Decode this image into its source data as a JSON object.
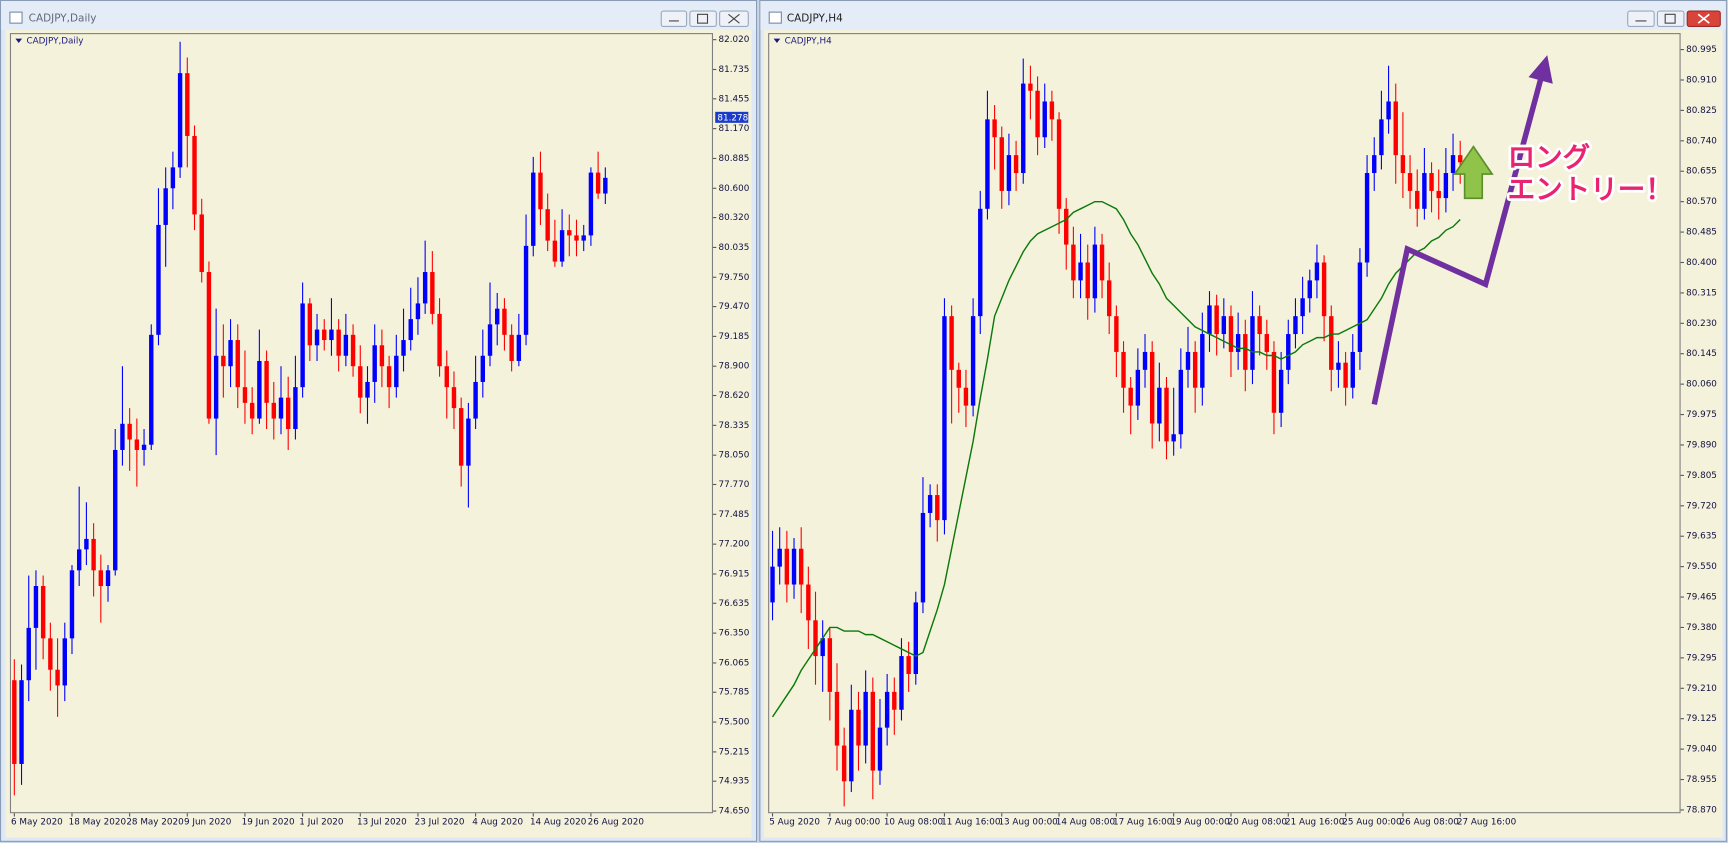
{
  "windows": [
    {
      "title": "CADJPY,Daily"
    },
    {
      "title": "CADJPY,H4"
    }
  ],
  "chart_data": [
    {
      "type": "candlestick",
      "title": "CADJPY,Daily",
      "categories": [
        "6 May 2020",
        null,
        null,
        null,
        null,
        null,
        null,
        null,
        "18 May 2020",
        null,
        null,
        null,
        null,
        null,
        null,
        null,
        "28 May 2020",
        null,
        null,
        null,
        null,
        null,
        null,
        null,
        "9 Jun 2020",
        null,
        null,
        null,
        null,
        null,
        null,
        null,
        "19 Jun 2020",
        null,
        null,
        null,
        null,
        null,
        null,
        null,
        "1 Jul 2020",
        null,
        null,
        null,
        null,
        null,
        null,
        null,
        "13 Jul 2020",
        null,
        null,
        null,
        null,
        null,
        null,
        null,
        "23 Jul 2020",
        null,
        null,
        null,
        null,
        null,
        null,
        null,
        "4 Aug 2020",
        null,
        null,
        null,
        null,
        null,
        null,
        null,
        "14 Aug 2020",
        null,
        null,
        null,
        null,
        null,
        null,
        null,
        "26 Aug 2020",
        null,
        null
      ],
      "open": [
        75.9,
        75.1,
        75.9,
        76.4,
        76.8,
        76.3,
        76.0,
        75.85,
        76.3,
        76.95,
        77.15,
        77.25,
        76.95,
        76.8,
        76.95,
        78.1,
        78.35,
        78.2,
        78.1,
        78.15,
        79.2,
        80.25,
        80.6,
        80.8,
        81.7,
        81.1,
        80.35,
        79.8,
        78.4,
        79.0,
        78.9,
        79.15,
        78.7,
        78.55,
        78.4,
        78.95,
        78.55,
        78.4,
        78.6,
        78.3,
        78.7,
        79.5,
        79.1,
        79.25,
        79.15,
        79.25,
        79.0,
        79.2,
        78.9,
        78.6,
        78.75,
        79.1,
        78.9,
        78.7,
        79.0,
        79.15,
        79.35,
        79.5,
        79.8,
        79.4,
        78.9,
        78.7,
        78.5,
        77.95,
        78.4,
        78.75,
        79.0,
        79.3,
        79.45,
        79.2,
        78.95,
        79.2,
        80.05,
        80.75,
        80.4,
        80.1,
        79.9,
        80.2,
        80.15,
        80.1,
        80.15,
        80.75,
        80.55
      ],
      "high": [
        76.1,
        76.05,
        76.9,
        76.95,
        76.9,
        76.45,
        76.3,
        76.45,
        77.0,
        77.75,
        77.6,
        77.4,
        77.1,
        77.0,
        78.3,
        78.9,
        78.5,
        78.4,
        78.3,
        79.3,
        80.6,
        80.8,
        80.95,
        82.0,
        81.85,
        81.2,
        80.5,
        79.9,
        79.45,
        79.3,
        79.35,
        79.3,
        79.05,
        78.7,
        79.25,
        79.05,
        78.75,
        78.9,
        78.8,
        79.0,
        79.7,
        79.55,
        79.4,
        79.35,
        79.55,
        79.35,
        79.4,
        79.3,
        79.1,
        78.9,
        79.3,
        79.25,
        79.0,
        79.2,
        79.45,
        79.65,
        79.75,
        80.1,
        80.0,
        79.55,
        79.05,
        78.85,
        78.6,
        78.55,
        79.0,
        79.25,
        79.7,
        79.6,
        79.55,
        79.3,
        79.4,
        80.35,
        80.9,
        80.95,
        80.55,
        80.3,
        80.4,
        80.35,
        80.3,
        80.25,
        80.8,
        80.95,
        80.8
      ],
      "low": [
        74.8,
        74.9,
        75.7,
        76.0,
        76.1,
        75.8,
        75.55,
        75.7,
        76.15,
        76.8,
        77.0,
        76.7,
        76.45,
        76.65,
        76.9,
        77.95,
        77.9,
        77.75,
        77.95,
        78.1,
        79.1,
        79.85,
        80.4,
        80.7,
        80.8,
        80.2,
        79.7,
        78.35,
        78.05,
        78.6,
        78.7,
        78.5,
        78.35,
        78.25,
        78.35,
        78.3,
        78.2,
        78.25,
        78.1,
        78.2,
        78.6,
        78.95,
        78.95,
        79.05,
        79.0,
        78.85,
        78.9,
        78.8,
        78.45,
        78.35,
        78.55,
        78.7,
        78.5,
        78.6,
        78.85,
        79.05,
        79.2,
        79.4,
        79.3,
        78.8,
        78.4,
        78.3,
        77.75,
        77.55,
        78.3,
        78.6,
        78.9,
        79.1,
        79.05,
        78.85,
        78.9,
        79.1,
        79.95,
        80.25,
        80.0,
        79.85,
        79.85,
        79.95,
        79.95,
        80.0,
        80.05,
        80.5,
        80.45
      ],
      "close": [
        75.1,
        75.9,
        76.4,
        76.8,
        76.3,
        76.0,
        75.85,
        76.3,
        76.95,
        77.15,
        77.25,
        76.95,
        76.8,
        76.95,
        78.1,
        78.35,
        78.2,
        78.1,
        78.15,
        79.2,
        80.25,
        80.6,
        80.8,
        81.7,
        81.1,
        80.35,
        79.8,
        78.4,
        79.0,
        78.9,
        79.15,
        78.7,
        78.55,
        78.4,
        78.95,
        78.55,
        78.4,
        78.6,
        78.3,
        78.7,
        79.5,
        79.1,
        79.25,
        79.15,
        79.25,
        79.0,
        79.2,
        78.9,
        78.6,
        78.75,
        79.1,
        78.9,
        78.7,
        79.0,
        79.15,
        79.35,
        79.5,
        79.8,
        79.4,
        78.9,
        78.7,
        78.5,
        77.95,
        78.4,
        78.75,
        79.0,
        79.3,
        79.45,
        79.2,
        78.95,
        79.2,
        80.05,
        80.75,
        80.4,
        80.1,
        79.9,
        80.2,
        80.15,
        80.1,
        80.15,
        80.75,
        80.55,
        80.7
      ],
      "up_color": "#0000ff",
      "down_color": "#ff0000",
      "ylim": [
        74.65,
        82.02
      ],
      "yticks": [
        {
          "value": 82.02,
          "label": "82.020"
        },
        {
          "value": 81.735,
          "label": "81.735"
        },
        {
          "value": 81.455,
          "label": "81.455"
        },
        {
          "value": 81.17,
          "label": "81.170"
        },
        {
          "value": 80.885,
          "label": "80.885"
        },
        {
          "value": 80.6,
          "label": "80.600"
        },
        {
          "value": 80.32,
          "label": "80.320"
        },
        {
          "value": 80.035,
          "label": "80.035"
        },
        {
          "value": 79.75,
          "label": "79.750"
        },
        {
          "value": 79.47,
          "label": "79.470"
        },
        {
          "value": 79.185,
          "label": "79.185"
        },
        {
          "value": 78.9,
          "label": "78.900"
        },
        {
          "value": 78.62,
          "label": "78.620"
        },
        {
          "value": 78.335,
          "label": "78.335"
        },
        {
          "value": 78.05,
          "label": "78.050"
        },
        {
          "value": 77.77,
          "label": "77.770"
        },
        {
          "value": 77.485,
          "label": "77.485"
        },
        {
          "value": 77.2,
          "label": "77.200"
        },
        {
          "value": 76.915,
          "label": "76.915"
        },
        {
          "value": 76.635,
          "label": "76.635"
        },
        {
          "value": 76.35,
          "label": "76.350"
        },
        {
          "value": 76.065,
          "label": "76.065"
        },
        {
          "value": 75.785,
          "label": "75.785"
        },
        {
          "value": 75.5,
          "label": "75.500"
        },
        {
          "value": 75.215,
          "label": "75.215"
        },
        {
          "value": 74.935,
          "label": "74.935"
        },
        {
          "value": 74.65,
          "label": "74.650"
        }
      ],
      "price_label": {
        "value": 81.278,
        "label": "81.278"
      }
    },
    {
      "type": "candlestick",
      "title": "CADJPY,H4",
      "categories": [
        "5 Aug 2020",
        null,
        null,
        null,
        null,
        null,
        null,
        null,
        "7 Aug 00:00",
        null,
        null,
        null,
        null,
        null,
        null,
        null,
        "10 Aug 08:00",
        null,
        null,
        null,
        null,
        null,
        null,
        null,
        "11 Aug 16:00",
        null,
        null,
        null,
        null,
        null,
        null,
        null,
        "13 Aug 00:00",
        null,
        null,
        null,
        null,
        null,
        null,
        null,
        "14 Aug 08:00",
        null,
        null,
        null,
        null,
        null,
        null,
        null,
        "17 Aug 16:00",
        null,
        null,
        null,
        null,
        null,
        null,
        null,
        "19 Aug 00:00",
        null,
        null,
        null,
        null,
        null,
        null,
        null,
        "20 Aug 08:00",
        null,
        null,
        null,
        null,
        null,
        null,
        null,
        "21 Aug 16:00",
        null,
        null,
        null,
        null,
        null,
        null,
        null,
        "25 Aug 00:00",
        null,
        null,
        null,
        null,
        null,
        null,
        null,
        "26 Aug 08:00",
        null,
        null,
        null,
        null,
        null,
        null,
        null,
        "27 Aug 16:00"
      ],
      "open": [
        79.45,
        79.55,
        79.6,
        79.5,
        79.6,
        79.5,
        79.4,
        79.3,
        79.35,
        79.2,
        79.05,
        78.95,
        79.15,
        79.05,
        79.2,
        78.98,
        79.1,
        79.2,
        79.15,
        79.3,
        79.25,
        79.45,
        79.7,
        79.75,
        79.68,
        80.25,
        80.1,
        80.05,
        80.0,
        80.25,
        80.55,
        80.8,
        80.75,
        80.6,
        80.7,
        80.65,
        80.9,
        80.88,
        80.75,
        80.85,
        80.8,
        80.55,
        80.45,
        80.35,
        80.4,
        80.3,
        80.45,
        80.35,
        80.25,
        80.15,
        80.05,
        80.0,
        80.1,
        80.15,
        79.95,
        80.05,
        79.9,
        79.92,
        80.1,
        80.15,
        80.05,
        80.2,
        80.28,
        80.2,
        80.25,
        80.15,
        80.2,
        80.1,
        80.25,
        80.2,
        80.15,
        79.98,
        80.1,
        80.2,
        80.25,
        80.3,
        80.35,
        80.4,
        80.25,
        80.1,
        80.12,
        80.05,
        80.15,
        80.4,
        80.65,
        80.7,
        80.8,
        80.85,
        80.7,
        80.65,
        80.6,
        80.55,
        80.65,
        80.6,
        80.58,
        80.65,
        80.7
      ],
      "high": [
        79.65,
        79.66,
        79.65,
        79.63,
        79.66,
        79.55,
        79.48,
        79.4,
        79.38,
        79.28,
        79.1,
        79.22,
        79.2,
        79.26,
        79.24,
        79.18,
        79.25,
        79.24,
        79.35,
        79.34,
        79.48,
        79.8,
        79.78,
        79.78,
        80.3,
        80.28,
        80.12,
        80.1,
        80.3,
        80.6,
        80.88,
        80.84,
        80.78,
        80.76,
        80.74,
        80.97,
        80.95,
        80.92,
        80.9,
        80.88,
        80.82,
        80.58,
        80.5,
        80.48,
        80.45,
        80.5,
        80.48,
        80.4,
        80.28,
        80.18,
        80.08,
        80.16,
        80.2,
        80.18,
        80.12,
        80.08,
        80.05,
        80.16,
        80.22,
        80.18,
        80.26,
        80.32,
        80.31,
        80.3,
        80.28,
        80.26,
        80.24,
        80.32,
        80.28,
        80.24,
        80.18,
        80.15,
        80.24,
        80.3,
        80.36,
        80.38,
        80.45,
        80.42,
        80.28,
        80.18,
        80.15,
        80.2,
        80.44,
        80.7,
        80.75,
        80.88,
        80.95,
        80.9,
        80.82,
        80.7,
        80.66,
        80.72,
        80.68,
        80.66,
        80.72,
        80.76,
        80.74
      ],
      "low": [
        79.4,
        79.5,
        79.45,
        79.46,
        79.42,
        79.32,
        79.22,
        79.2,
        79.12,
        78.98,
        78.88,
        78.92,
        78.98,
        79.0,
        78.9,
        78.94,
        79.05,
        79.08,
        79.12,
        79.2,
        79.22,
        79.42,
        79.66,
        79.62,
        79.64,
        79.95,
        79.98,
        79.94,
        79.97,
        80.2,
        80.52,
        80.66,
        80.55,
        80.56,
        80.6,
        80.62,
        80.8,
        80.7,
        80.72,
        80.74,
        80.48,
        80.38,
        80.3,
        80.3,
        80.24,
        80.26,
        80.3,
        80.2,
        80.08,
        79.98,
        79.92,
        79.96,
        80.05,
        79.88,
        79.9,
        79.85,
        79.86,
        79.88,
        80.05,
        79.98,
        80.0,
        80.15,
        80.14,
        80.16,
        80.08,
        80.1,
        80.04,
        80.06,
        80.14,
        80.1,
        79.92,
        79.94,
        80.06,
        80.16,
        80.2,
        80.26,
        80.3,
        80.18,
        80.04,
        80.05,
        80.0,
        80.02,
        80.1,
        80.36,
        80.6,
        80.66,
        80.76,
        80.62,
        80.58,
        80.55,
        80.5,
        80.52,
        80.54,
        80.52,
        80.54,
        80.6,
        80.62
      ],
      "close": [
        79.55,
        79.6,
        79.5,
        79.6,
        79.5,
        79.4,
        79.3,
        79.35,
        79.2,
        79.05,
        78.95,
        79.15,
        79.05,
        79.2,
        78.98,
        79.1,
        79.2,
        79.15,
        79.3,
        79.25,
        79.45,
        79.7,
        79.75,
        79.68,
        80.25,
        80.1,
        80.05,
        80.0,
        80.25,
        80.55,
        80.8,
        80.75,
        80.6,
        80.7,
        80.65,
        80.9,
        80.88,
        80.75,
        80.85,
        80.8,
        80.55,
        80.45,
        80.35,
        80.4,
        80.3,
        80.45,
        80.35,
        80.25,
        80.15,
        80.05,
        80.0,
        80.1,
        80.15,
        79.95,
        80.05,
        79.9,
        79.92,
        80.1,
        80.15,
        80.05,
        80.2,
        80.28,
        80.2,
        80.25,
        80.15,
        80.2,
        80.1,
        80.25,
        80.2,
        80.15,
        79.98,
        80.1,
        80.2,
        80.25,
        80.3,
        80.35,
        80.4,
        80.25,
        80.1,
        80.12,
        80.05,
        80.15,
        80.4,
        80.65,
        80.7,
        80.8,
        80.85,
        80.7,
        80.65,
        80.6,
        80.55,
        80.65,
        80.6,
        80.58,
        80.65,
        80.7,
        80.68
      ],
      "up_color": "#0000ff",
      "down_color": "#ff0000",
      "ma": {
        "color": "#0b7a0b",
        "values": [
          79.13,
          79.16,
          79.19,
          79.22,
          79.26,
          79.29,
          79.32,
          79.35,
          79.38,
          79.38,
          79.37,
          79.37,
          79.37,
          79.36,
          79.36,
          79.35,
          79.34,
          79.33,
          79.32,
          79.31,
          79.3,
          79.31,
          79.37,
          79.43,
          79.5,
          79.6,
          79.7,
          79.8,
          79.9,
          80.02,
          80.13,
          80.25,
          80.3,
          80.35,
          80.39,
          80.43,
          80.46,
          80.48,
          80.49,
          80.5,
          80.51,
          80.52,
          80.54,
          80.55,
          80.56,
          80.57,
          80.57,
          80.56,
          80.55,
          80.52,
          80.48,
          80.45,
          80.41,
          80.37,
          80.34,
          80.3,
          80.28,
          80.26,
          80.24,
          80.22,
          80.21,
          80.2,
          80.19,
          80.18,
          80.17,
          80.16,
          80.16,
          80.15,
          80.15,
          80.14,
          80.14,
          80.13,
          80.14,
          80.15,
          80.17,
          80.18,
          80.19,
          80.19,
          80.2,
          80.2,
          80.21,
          80.22,
          80.23,
          80.24,
          80.27,
          80.3,
          80.34,
          80.37,
          80.39,
          80.41,
          80.43,
          80.44,
          80.46,
          80.47,
          80.49,
          80.5,
          80.52
        ]
      },
      "ylim": [
        78.87,
        80.995
      ],
      "yticks": [
        {
          "value": 80.995,
          "label": "80.995"
        },
        {
          "value": 80.91,
          "label": "80.910"
        },
        {
          "value": 80.825,
          "label": "80.825"
        },
        {
          "value": 80.74,
          "label": "80.740"
        },
        {
          "value": 80.655,
          "label": "80.655"
        },
        {
          "value": 80.57,
          "label": "80.570"
        },
        {
          "value": 80.485,
          "label": "80.485"
        },
        {
          "value": 80.4,
          "label": "80.400"
        },
        {
          "value": 80.315,
          "label": "80.315"
        },
        {
          "value": 80.23,
          "label": "80.230"
        },
        {
          "value": 80.145,
          "label": "80.145"
        },
        {
          "value": 80.06,
          "label": "80.060"
        },
        {
          "value": 79.975,
          "label": "79.975"
        },
        {
          "value": 79.89,
          "label": "79.890"
        },
        {
          "value": 79.805,
          "label": "79.805"
        },
        {
          "value": 79.72,
          "label": "79.720"
        },
        {
          "value": 79.635,
          "label": "79.635"
        },
        {
          "value": 79.55,
          "label": "79.550"
        },
        {
          "value": 79.465,
          "label": "79.465"
        },
        {
          "value": 79.38,
          "label": "79.380"
        },
        {
          "value": 79.295,
          "label": "79.295"
        },
        {
          "value": 79.21,
          "label": "79.210"
        },
        {
          "value": 79.125,
          "label": "79.125"
        },
        {
          "value": 79.04,
          "label": "79.040"
        },
        {
          "value": 78.955,
          "label": "78.955"
        },
        {
          "value": 78.87,
          "label": "78.870"
        }
      ],
      "annotation": [
        "ロング",
        "エントリー！"
      ]
    }
  ]
}
